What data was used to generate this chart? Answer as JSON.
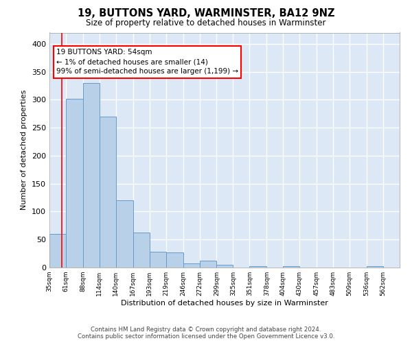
{
  "title": "19, BUTTONS YARD, WARMINSTER, BA12 9NZ",
  "subtitle": "Size of property relative to detached houses in Warminster",
  "xlabel": "Distribution of detached houses by size in Warminster",
  "ylabel": "Number of detached properties",
  "bar_color": "#b8d0e8",
  "bar_edge_color": "#6699cc",
  "background_color": "#dce8f5",
  "grid_color": "white",
  "annotation_text": "19 BUTTONS YARD: 54sqm\n← 1% of detached houses are smaller (14)\n99% of semi-detached houses are larger (1,199) →",
  "annotation_box_color": "white",
  "annotation_box_edge_color": "red",
  "property_line_color": "red",
  "property_line_x": 54,
  "categories": [
    "35sqm",
    "61sqm",
    "88sqm",
    "114sqm",
    "140sqm",
    "167sqm",
    "193sqm",
    "219sqm",
    "246sqm",
    "272sqm",
    "299sqm",
    "325sqm",
    "351sqm",
    "378sqm",
    "404sqm",
    "430sqm",
    "457sqm",
    "483sqm",
    "509sqm",
    "536sqm",
    "562sqm"
  ],
  "bin_edges": [
    35,
    61,
    88,
    114,
    140,
    167,
    193,
    219,
    246,
    272,
    299,
    325,
    351,
    378,
    404,
    430,
    457,
    483,
    509,
    536,
    562,
    588
  ],
  "values": [
    60,
    302,
    330,
    270,
    120,
    63,
    28,
    27,
    7,
    12,
    5,
    0,
    3,
    0,
    3,
    0,
    0,
    0,
    0,
    3,
    0
  ],
  "ylim": [
    0,
    420
  ],
  "yticks": [
    0,
    50,
    100,
    150,
    200,
    250,
    300,
    350,
    400
  ],
  "footer_line1": "Contains HM Land Registry data © Crown copyright and database right 2024.",
  "footer_line2": "Contains public sector information licensed under the Open Government Licence v3.0."
}
